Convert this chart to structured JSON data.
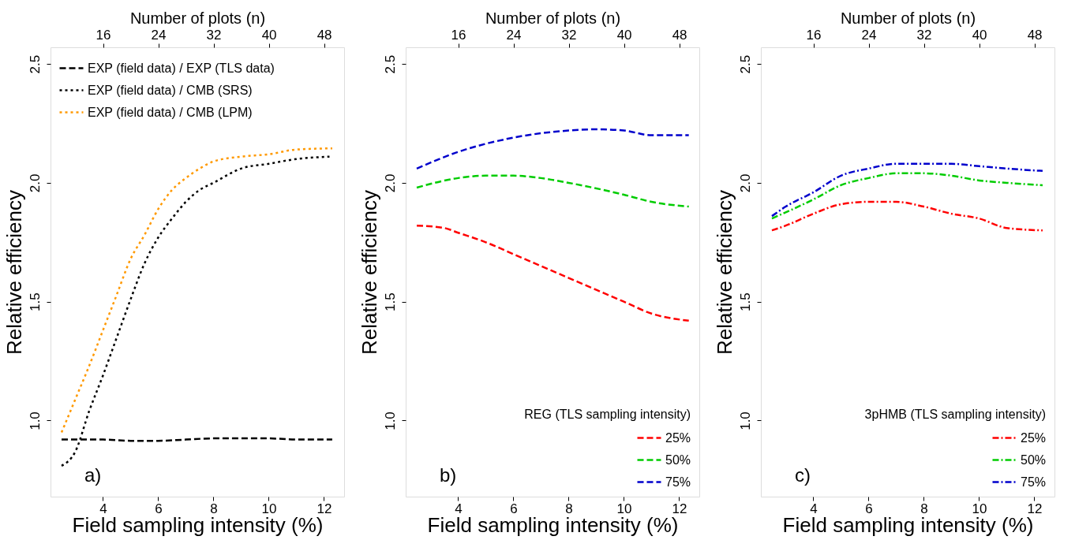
{
  "chart_data": [
    {
      "type": "line",
      "xlabel": "Field sampling intensity (%)",
      "ylabel": "Relative efficiency",
      "x2label": "Number of plots (n)",
      "xlim": [
        2.1,
        12.73
      ],
      "xticks": [
        4,
        6,
        8,
        10,
        12
      ],
      "x2lim": [
        8.4,
        50.9
      ],
      "x2ticks": [
        16,
        24,
        32,
        40,
        48
      ],
      "ylim": [
        0.68,
        2.57
      ],
      "yticks": [
        {
          "value": 1,
          "label": "1.0"
        },
        {
          "value": 1.5,
          "label": "1.5"
        },
        {
          "value": 2,
          "label": "2.0"
        },
        {
          "value": 2.5,
          "label": "2.5"
        }
      ],
      "grid": false,
      "legend": "top left",
      "annotations": [
        "a)"
      ],
      "series": [
        {
          "name": "EXP (field data) / EXP (TLS data)",
          "color": "#000000",
          "line_style": "dashed",
          "x": [
            2.5,
            4,
            5,
            6,
            7,
            8,
            9,
            10,
            11,
            12.3
          ],
          "values": [
            0.92,
            0.92,
            0.915,
            0.915,
            0.92,
            0.925,
            0.925,
            0.925,
            0.92,
            0.92
          ]
        },
        {
          "name": "EXP (field data) / CMB (SRS)",
          "color": "#000000",
          "line_style": "dotted",
          "x": [
            2.5,
            3,
            3.5,
            4,
            4.5,
            5,
            5.5,
            6,
            6.5,
            7,
            7.5,
            8,
            9,
            10,
            11,
            12.2
          ],
          "values": [
            0.81,
            0.87,
            1.04,
            1.19,
            1.35,
            1.51,
            1.66,
            1.77,
            1.85,
            1.92,
            1.97,
            2.0,
            2.06,
            2.08,
            2.1,
            2.11
          ]
        },
        {
          "name": "EXP (field data) / CMB (LPM)",
          "color": "#ff9900",
          "line_style": "dotted",
          "x": [
            2.5,
            3,
            3.5,
            4,
            4.5,
            5,
            5.5,
            6,
            6.5,
            7,
            7.5,
            8,
            9,
            10,
            11,
            12.3
          ],
          "values": [
            0.95,
            1.09,
            1.23,
            1.38,
            1.53,
            1.68,
            1.78,
            1.89,
            1.97,
            2.02,
            2.06,
            2.09,
            2.11,
            2.12,
            2.14,
            2.145
          ]
        }
      ]
    },
    {
      "type": "line",
      "xlabel": "Field sampling intensity (%)",
      "ylabel": "Relative efficiency",
      "x2label": "Number of plots (n)",
      "xlim": [
        2.1,
        12.73
      ],
      "xticks": [
        4,
        6,
        8,
        10,
        12
      ],
      "x2lim": [
        8.4,
        50.9
      ],
      "x2ticks": [
        16,
        24,
        32,
        40,
        48
      ],
      "ylim": [
        0.68,
        2.57
      ],
      "yticks": [
        {
          "value": 1,
          "label": "1.0"
        },
        {
          "value": 1.5,
          "label": "1.5"
        },
        {
          "value": 2,
          "label": "2.0"
        },
        {
          "value": 2.5,
          "label": "2.5"
        }
      ],
      "grid": false,
      "legend": "bottom right",
      "legend_title": "REG (TLS sampling intensity)",
      "annotations": [
        "b)"
      ],
      "series": [
        {
          "name": "25%",
          "color": "#ff0000",
          "line_style": "dashed",
          "x": [
            2.5,
            3.5,
            4,
            5,
            6,
            7,
            8,
            9,
            10,
            11,
            12.35
          ],
          "values": [
            1.82,
            1.81,
            1.79,
            1.75,
            1.7,
            1.65,
            1.6,
            1.55,
            1.5,
            1.45,
            1.42
          ]
        },
        {
          "name": "50%",
          "color": "#00cc00",
          "line_style": "dashed",
          "x": [
            2.5,
            4,
            5,
            6,
            7,
            8,
            10,
            11,
            12.35
          ],
          "values": [
            1.98,
            2.02,
            2.03,
            2.03,
            2.02,
            2.0,
            1.95,
            1.92,
            1.9
          ]
        },
        {
          "name": "75%",
          "color": "#0000cc",
          "line_style": "dashed",
          "x": [
            2.5,
            4,
            6,
            8,
            9,
            10,
            11,
            12.35
          ],
          "values": [
            2.06,
            2.13,
            2.19,
            2.22,
            2.225,
            2.22,
            2.2,
            2.2
          ]
        }
      ]
    },
    {
      "type": "line",
      "xlabel": "Field sampling intensity (%)",
      "ylabel": "Relative efficiency",
      "x2label": "Number of plots (n)",
      "xlim": [
        2.1,
        12.73
      ],
      "xticks": [
        4,
        6,
        8,
        10,
        12
      ],
      "x2lim": [
        8.4,
        50.9
      ],
      "x2ticks": [
        16,
        24,
        32,
        40,
        48
      ],
      "ylim": [
        0.68,
        2.57
      ],
      "yticks": [
        {
          "value": 1,
          "label": "1.0"
        },
        {
          "value": 1.5,
          "label": "1.5"
        },
        {
          "value": 2,
          "label": "2.0"
        },
        {
          "value": 2.5,
          "label": "2.5"
        }
      ],
      "grid": false,
      "legend": "bottom right",
      "legend_title": "3pHMB (TLS sampling intensity)",
      "annotations": [
        "c)"
      ],
      "series": [
        {
          "name": "25%",
          "color": "#ff0000",
          "line_style": "dashdot",
          "x": [
            2.5,
            3,
            4,
            5,
            6,
            7,
            8,
            9,
            10,
            11,
            12.3
          ],
          "values": [
            1.8,
            1.82,
            1.87,
            1.91,
            1.92,
            1.92,
            1.9,
            1.87,
            1.85,
            1.81,
            1.8
          ]
        },
        {
          "name": "50%",
          "color": "#00cc00",
          "line_style": "dashdot",
          "x": [
            2.5,
            4,
            5,
            6,
            7,
            8,
            9,
            10,
            11,
            12.3
          ],
          "values": [
            1.85,
            1.93,
            1.99,
            2.02,
            2.04,
            2.04,
            2.03,
            2.01,
            2.0,
            1.99
          ]
        },
        {
          "name": "75%",
          "color": "#0000cc",
          "line_style": "dashdot",
          "x": [
            2.5,
            3,
            4,
            5,
            6,
            7,
            8,
            9,
            10,
            11,
            12.3
          ],
          "values": [
            1.86,
            1.9,
            1.96,
            2.03,
            2.06,
            2.08,
            2.08,
            2.08,
            2.07,
            2.06,
            2.05
          ]
        }
      ]
    }
  ]
}
